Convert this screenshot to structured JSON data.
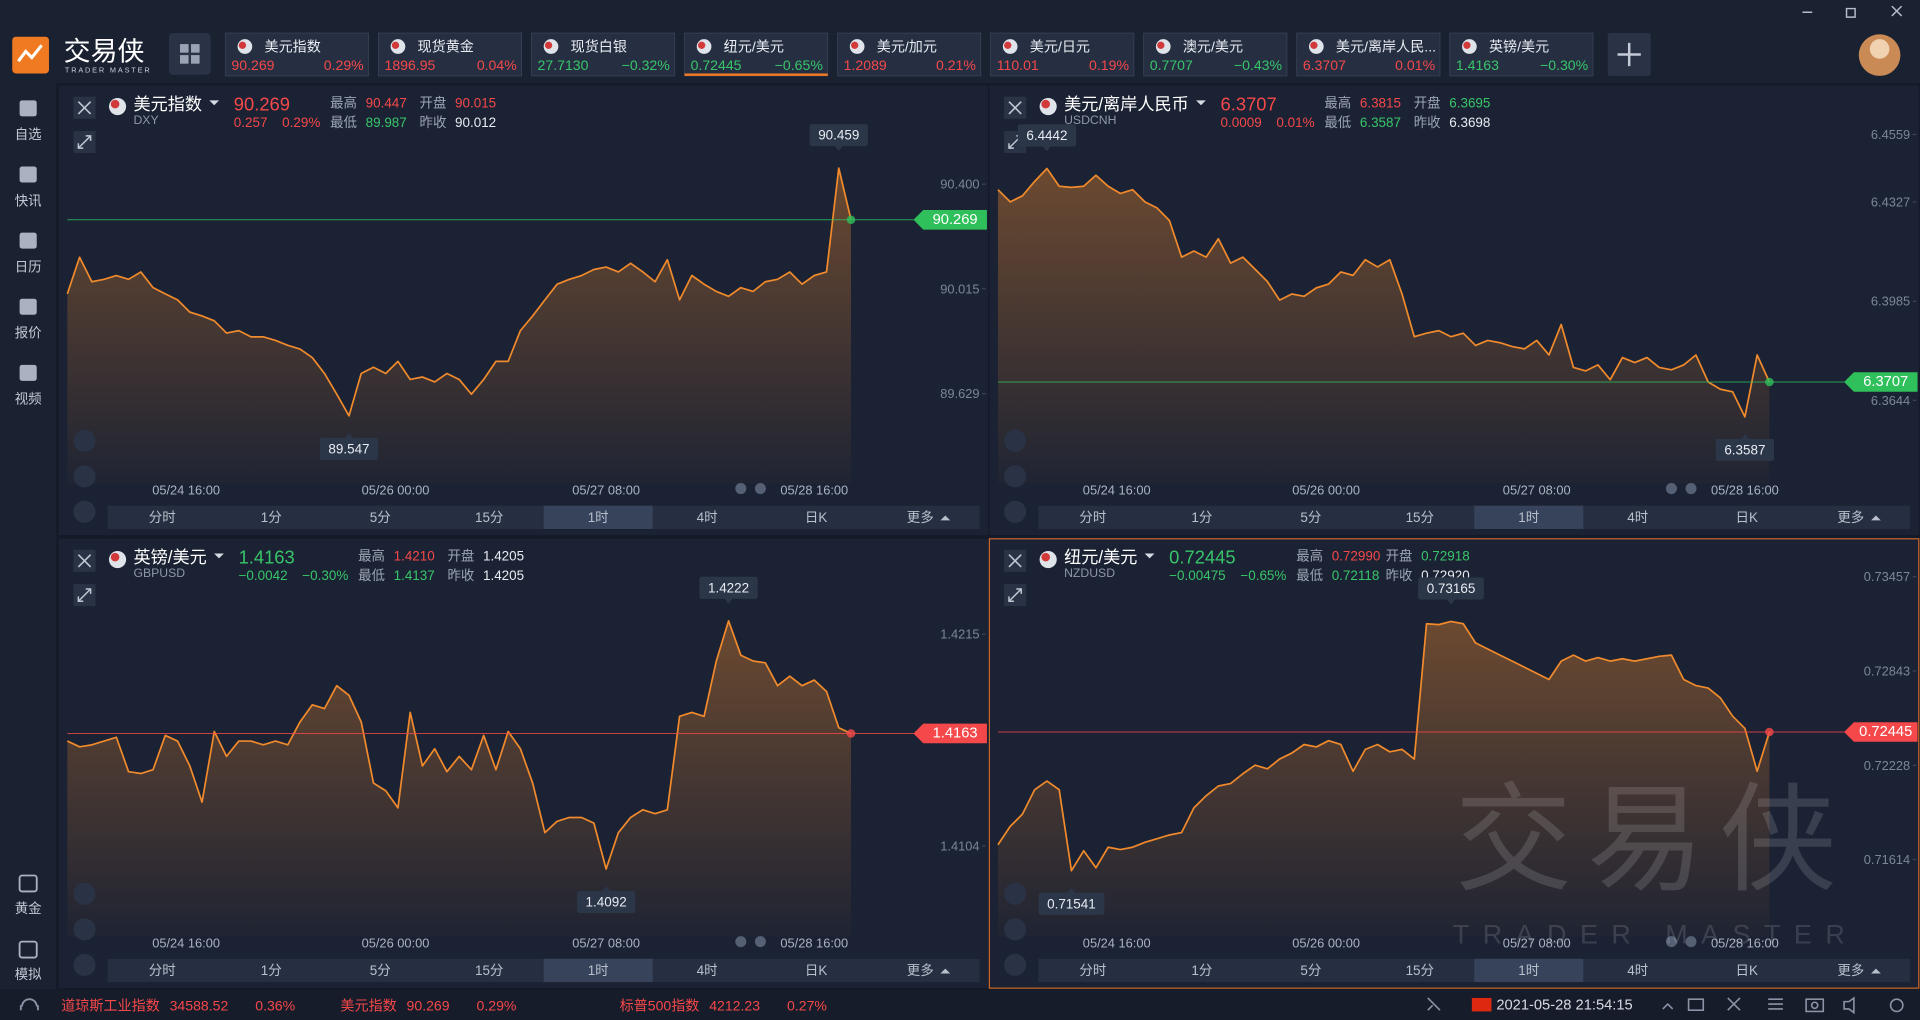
{
  "app": {
    "name": "交易侠",
    "tagline": "TRADER MASTER"
  },
  "tickers": [
    {
      "name": "美元指数",
      "price": "90.269",
      "change": "0.29%",
      "color": "#f5484a"
    },
    {
      "name": "现货黄金",
      "price": "1896.95",
      "change": "0.04%",
      "color": "#f5484a"
    },
    {
      "name": "现货白银",
      "price": "27.7130",
      "change": "−0.32%",
      "color": "#38c56a"
    },
    {
      "name": "纽元/美元",
      "price": "0.72445",
      "change": "−0.65%",
      "color": "#38c56a"
    },
    {
      "name": "美元/加元",
      "price": "1.2089",
      "change": "0.21%",
      "color": "#f5484a"
    },
    {
      "name": "美元/日元",
      "price": "110.01",
      "change": "0.19%",
      "color": "#f5484a"
    },
    {
      "name": "澳元/美元",
      "price": "0.7707",
      "change": "−0.43%",
      "color": "#38c56a"
    },
    {
      "name": "美元/离岸人民...",
      "price": "6.3707",
      "change": "0.01%",
      "color": "#f5484a"
    },
    {
      "name": "英镑/美元",
      "price": "1.4163",
      "change": "−0.30%",
      "color": "#38c56a"
    }
  ],
  "sidebar": {
    "top": [
      "自选",
      "快讯",
      "日历",
      "报价",
      "视频"
    ],
    "bottom": [
      "黄金",
      "模拟"
    ]
  },
  "timeframes": [
    "分时",
    "1分",
    "5分",
    "15分",
    "1时",
    "4时",
    "日K",
    "更多"
  ],
  "panels": [
    {
      "name": "美元指数",
      "code": "DXY",
      "price": "90.269",
      "change": "0.257",
      "change_pct": "0.29%",
      "color": "#f5484a",
      "tag_color": "#2fbf5b",
      "stats": [
        {
          "label": "最高",
          "value": "90.447",
          "color": "#f5484a"
        },
        {
          "label": "开盘",
          "value": "90.015",
          "color": "#f5484a"
        },
        {
          "label": "最低",
          "value": "89.987",
          "color": "#38c56a"
        },
        {
          "label": "昨收",
          "value": "90.012",
          "color": "#e8ecf2"
        }
      ],
      "xticks": [
        "05/24 16:00",
        "05/26 00:00",
        "05/27 08:00",
        "05/28 16:00"
      ],
      "ylim": [
        89.32,
        90.74
      ],
      "yticks": [
        {
          "value": 90.4,
          "label": "90.400"
        },
        90.015,
        89.629
      ],
      "values": [
        89.996,
        90.131,
        90.041,
        90.05,
        90.064,
        90.05,
        90.077,
        90.019,
        89.996,
        89.974,
        89.929,
        89.915,
        89.897,
        89.852,
        89.861,
        89.838,
        89.838,
        89.825,
        89.807,
        89.793,
        89.762,
        89.703,
        89.627,
        89.547,
        89.703,
        89.726,
        89.703,
        89.748,
        89.681,
        89.69,
        89.672,
        89.703,
        89.681,
        89.627,
        89.681,
        89.748,
        89.748,
        89.861,
        89.915,
        89.974,
        90.032,
        90.05,
        90.064,
        90.086,
        90.095,
        90.077,
        90.109,
        90.077,
        90.041,
        90.122,
        89.974,
        90.064,
        90.032,
        90.005,
        89.987,
        90.019,
        90.005,
        90.041,
        90.05,
        90.077,
        90.032,
        90.064,
        90.077,
        90.459,
        90.269
      ]
    },
    {
      "name": "美元/离岸人民币",
      "code": "USDCNH",
      "price": "6.3707",
      "change": "0.0009",
      "change_pct": "0.01%",
      "color": "#f5484a",
      "tag_color": "#2fbf5b",
      "stats": [
        {
          "label": "最高",
          "value": "6.3815",
          "color": "#f5484a"
        },
        {
          "label": "开盘",
          "value": "6.3695",
          "color": "#38c56a"
        },
        {
          "label": "最低",
          "value": "6.3587",
          "color": "#38c56a"
        },
        {
          "label": "昨收",
          "value": "6.3698",
          "color": "#e8ecf2"
        }
      ],
      "xticks": [
        "05/24 16:00",
        "05/26 00:00",
        "05/27 08:00",
        "05/28 16:00"
      ],
      "ylim": [
        6.3378,
        6.4706
      ],
      "yticks": [
        6.4559,
        6.4327,
        6.3985,
        6.3644
      ],
      "values": [
        6.4369,
        6.4327,
        6.4348,
        6.4398,
        6.4442,
        6.4381,
        6.4377,
        6.4381,
        6.4419,
        6.4381,
        6.4356,
        6.4369,
        6.4327,
        6.4306,
        6.4263,
        6.4137,
        6.4158,
        6.4137,
        6.42,
        6.4116,
        6.4137,
        6.4095,
        6.4053,
        6.3989,
        6.401,
        6.4002,
        6.4031,
        6.4044,
        6.4086,
        6.4074,
        6.4128,
        6.4103,
        6.4128,
        6.401,
        6.3863,
        6.3875,
        6.3884,
        6.3863,
        6.3875,
        6.3833,
        6.385,
        6.3842,
        6.3829,
        6.3821,
        6.385,
        6.38,
        6.3905,
        6.3757,
        6.3745,
        6.3766,
        6.3715,
        6.3791,
        6.3774,
        6.3791,
        6.3757,
        6.3749,
        6.3766,
        6.38,
        6.3707,
        6.3682,
        6.3673,
        6.3587,
        6.38,
        6.3707
      ]
    },
    {
      "name": "英镑/美元",
      "code": "GBPUSD",
      "price": "1.4163",
      "change": "−0.0042",
      "change_pct": "−0.30%",
      "color": "#38c56a",
      "tag_color": "#f5484a",
      "stats": [
        {
          "label": "最高",
          "value": "1.4210",
          "color": "#f5484a"
        },
        {
          "label": "开盘",
          "value": "1.4205",
          "color": "#e8ecf2"
        },
        {
          "label": "最低",
          "value": "1.4137",
          "color": "#38c56a"
        },
        {
          "label": "昨收",
          "value": "1.4205",
          "color": "#e8ecf2"
        }
      ],
      "xticks": [
        "05/24 16:00",
        "05/26 00:00",
        "05/27 08:00",
        "05/28 16:00"
      ],
      "ylim": [
        1.40597,
        1.42618
      ],
      "yticks": [
        1.4215,
        1.4104
      ],
      "values": [
        1.4159,
        1.4156,
        1.4157,
        1.4159,
        1.4161,
        1.4143,
        1.4142,
        1.4144,
        1.4162,
        1.4159,
        1.4146,
        1.4127,
        1.4164,
        1.4151,
        1.4159,
        1.4159,
        1.4157,
        1.4159,
        1.4157,
        1.4169,
        1.4178,
        1.4176,
        1.4188,
        1.4183,
        1.4169,
        1.4137,
        1.4133,
        1.4124,
        1.4174,
        1.4146,
        1.4155,
        1.4143,
        1.4151,
        1.4144,
        1.4162,
        1.4144,
        1.4164,
        1.4155,
        1.4137,
        1.4111,
        1.4117,
        1.4119,
        1.4119,
        1.4116,
        1.4092,
        1.4111,
        1.4119,
        1.4123,
        1.4121,
        1.4123,
        1.4172,
        1.4174,
        1.4172,
        1.4201,
        1.4222,
        1.4204,
        1.4201,
        1.42,
        1.4188,
        1.4193,
        1.4188,
        1.4191,
        1.4185,
        1.4166,
        1.4163
      ]
    },
    {
      "name": "纽元/美元",
      "code": "NZDUSD",
      "price": "0.72445",
      "change": "−0.00475",
      "change_pct": "−0.65%",
      "color": "#38c56a",
      "tag_color": "#f5484a",
      "stats": [
        {
          "label": "最高",
          "value": "0.72990",
          "color": "#f5484a"
        },
        {
          "label": "开盘",
          "value": "0.72918",
          "color": "#38c56a"
        },
        {
          "label": "最低",
          "value": "0.72118",
          "color": "#38c56a"
        },
        {
          "label": "昨收",
          "value": "0.72920",
          "color": "#e8ecf2"
        }
      ],
      "xticks": [
        "05/24 16:00",
        "05/26 00:00",
        "05/27 08:00",
        "05/28 16:00"
      ],
      "ylim": [
        0.71151,
        0.73664
      ],
      "yticks": [
        0.73457,
        0.72843,
        0.72228,
        0.71614
      ],
      "values": [
        0.7171,
        0.7183,
        0.7191,
        0.72069,
        0.72125,
        0.72069,
        0.71541,
        0.71671,
        0.7156,
        0.71694,
        0.71679,
        0.71694,
        0.71726,
        0.7175,
        0.71774,
        0.7179,
        0.7195,
        0.72029,
        0.72093,
        0.72109,
        0.72173,
        0.72229,
        0.72205,
        0.72269,
        0.72308,
        0.72364,
        0.72348,
        0.72388,
        0.72364,
        0.72189,
        0.72332,
        0.72364,
        0.72316,
        0.72332,
        0.72269,
        0.7315,
        0.73145,
        0.73165,
        0.7315,
        0.73026,
        0.72986,
        0.72946,
        0.72907,
        0.72867,
        0.72827,
        0.72787,
        0.72907,
        0.72946,
        0.72907,
        0.7293,
        0.72907,
        0.72922,
        0.72907,
        0.72922,
        0.72938,
        0.72946,
        0.72787,
        0.72747,
        0.72731,
        0.72667,
        0.72548,
        0.72468,
        0.72189,
        0.72445
      ]
    }
  ],
  "footer": {
    "quotes": [
      {
        "name": "道琼斯工业指数",
        "price": "34588.52",
        "change": "0.36%"
      },
      {
        "name": "美元指数",
        "price": "90.269",
        "change": "0.29%"
      },
      {
        "name": "标普500指数",
        "price": "4212.23",
        "change": "0.27%"
      }
    ],
    "datetime": "2021-05-28 21:54:15"
  }
}
